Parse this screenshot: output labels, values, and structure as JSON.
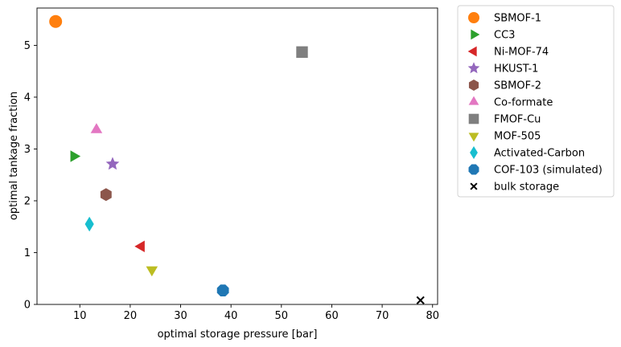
{
  "chart_data": {
    "type": "scatter",
    "xlabel": "optimal storage pressure [bar]",
    "ylabel": "optimal tankage fraction",
    "xlim": [
      1.5,
      81
    ],
    "ylim": [
      0,
      5.72
    ],
    "xticks": [
      10,
      20,
      30,
      40,
      50,
      60,
      70,
      80
    ],
    "yticks": [
      0,
      1,
      2,
      3,
      4,
      5
    ],
    "grid": false,
    "legend_position": "outside-right",
    "series": [
      {
        "name": "SBMOF-1",
        "marker": "circle",
        "color": "#ff7f0e",
        "x": 5.2,
        "y": 5.46
      },
      {
        "name": "CC3",
        "marker": "triangle-right",
        "color": "#2ca02c",
        "x": 8.8,
        "y": 2.86
      },
      {
        "name": "Ni-MOF-74",
        "marker": "triangle-left",
        "color": "#d62728",
        "x": 22.2,
        "y": 1.12
      },
      {
        "name": "HKUST-1",
        "marker": "star",
        "color": "#9467bd",
        "x": 16.5,
        "y": 2.71
      },
      {
        "name": "SBMOF-2",
        "marker": "hexagon",
        "color": "#8c564b",
        "x": 15.2,
        "y": 2.12
      },
      {
        "name": "Co-formate",
        "marker": "triangle-up",
        "color": "#e377c2",
        "x": 13.3,
        "y": 3.37
      },
      {
        "name": "FMOF-Cu",
        "marker": "square",
        "color": "#7f7f7f",
        "x": 54.1,
        "y": 4.87
      },
      {
        "name": "MOF-505",
        "marker": "triangle-down",
        "color": "#bcbd22",
        "x": 24.3,
        "y": 0.67
      },
      {
        "name": "Activated-Carbon",
        "marker": "diamond",
        "color": "#17becf",
        "x": 11.9,
        "y": 1.55
      },
      {
        "name": "COF-103 (simulated)",
        "marker": "octagon",
        "color": "#1f77b4",
        "x": 38.4,
        "y": 0.27
      },
      {
        "name": "bulk storage",
        "marker": "x",
        "color": "#000000",
        "x": 77.6,
        "y": 0.08
      }
    ]
  }
}
